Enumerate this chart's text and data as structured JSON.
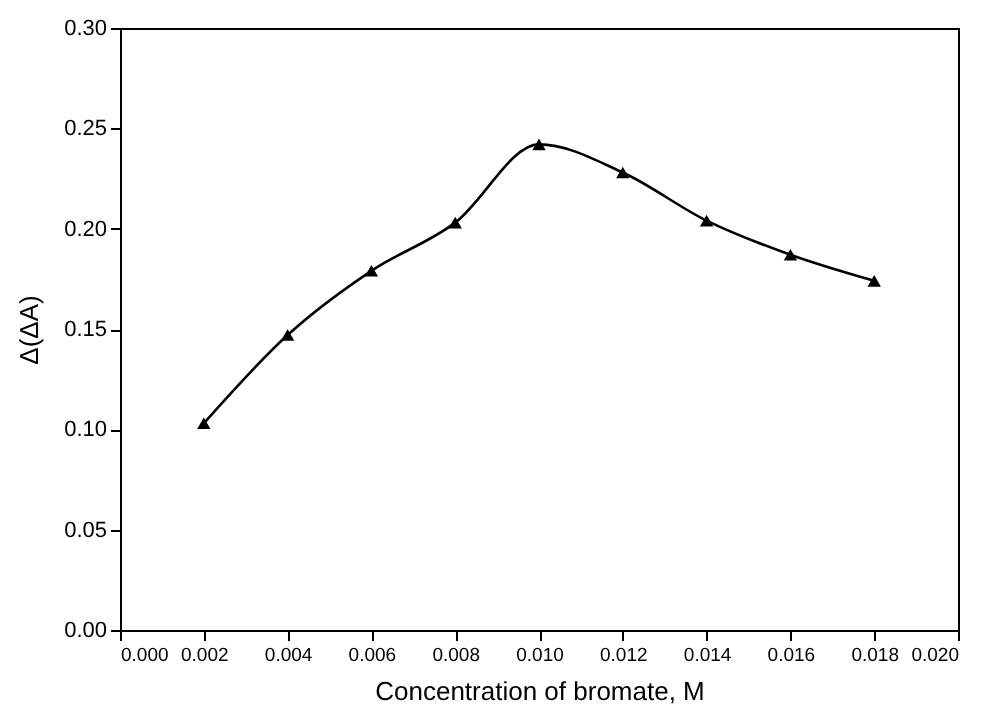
{
  "chart_data": {
    "type": "line",
    "xlabel": "Concentration of bromate,  M",
    "ylabel": "Δ(ΔA)",
    "x": [
      0.002,
      0.004,
      0.006,
      0.008,
      0.01,
      0.012,
      0.014,
      0.016,
      0.018
    ],
    "series": [
      {
        "color": "#000000",
        "values": [
          0.103,
          0.147,
          0.179,
          0.203,
          0.242,
          0.228,
          0.204,
          0.187,
          0.174
        ]
      }
    ],
    "xlim": [
      0,
      0.02
    ],
    "xticks": [
      {
        "value": 0,
        "label": "0.000"
      },
      {
        "value": 0.002,
        "label": "0.002"
      },
      {
        "value": 0.004,
        "label": "0.004"
      },
      {
        "value": 0.006,
        "label": "0.006"
      },
      {
        "value": 0.008,
        "label": "0.008"
      },
      {
        "value": 0.01,
        "label": "0.010"
      },
      {
        "value": 0.012,
        "label": "0.012"
      },
      {
        "value": 0.014,
        "label": "0.014"
      },
      {
        "value": 0.016,
        "label": "0.016"
      },
      {
        "value": 0.018,
        "label": "0.018"
      },
      {
        "value": 0.02,
        "label": "0.020"
      }
    ],
    "ylim": [
      0,
      0.3
    ],
    "yticks": [
      {
        "value": 0,
        "label": "0.00"
      },
      {
        "value": 0.05,
        "label": "0.05"
      },
      {
        "value": 0.1,
        "label": "0.10"
      },
      {
        "value": 0.15,
        "label": "0.15"
      },
      {
        "value": 0.2,
        "label": "0.20"
      },
      {
        "value": 0.25,
        "label": "0.25"
      },
      {
        "value": 0.3,
        "label": "0.30"
      }
    ],
    "marker": "triangle",
    "grid": false,
    "legend": false
  }
}
